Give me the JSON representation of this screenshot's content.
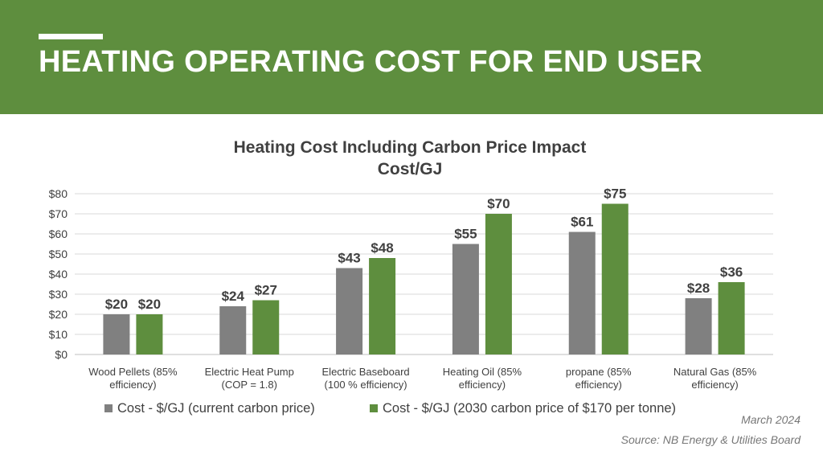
{
  "colors": {
    "banner": "#5e8e3e",
    "series_current": "#808080",
    "series_2030": "#5e8e3e"
  },
  "header": {
    "title": "HEATING OPERATING COST FOR END USER"
  },
  "chart_data": {
    "type": "bar",
    "title": "Heating Cost Including Carbon Price Impact",
    "subtitle": "Cost/GJ",
    "categories": [
      [
        "Wood Pellets (85%",
        "efficiency)"
      ],
      [
        "Electric Heat Pump",
        "(COP = 1.8)"
      ],
      [
        "Electric Baseboard",
        "(100 % efficiency)"
      ],
      [
        "Heating Oil (85%",
        "efficiency)"
      ],
      [
        "propane (85%",
        "efficiency)"
      ],
      [
        "Natural Gas (85%",
        "efficiency)"
      ]
    ],
    "series": [
      {
        "name": "Cost - $/GJ (current carbon price)",
        "values": [
          20,
          24,
          43,
          55,
          61,
          28
        ],
        "labels": [
          "$20",
          "$24",
          "$43",
          "$55",
          "$61",
          "$28"
        ],
        "color": "#808080"
      },
      {
        "name": "Cost - $/GJ (2030 carbon price of $170 per tonne)",
        "values": [
          20,
          27,
          48,
          70,
          75,
          36
        ],
        "labels": [
          "$20",
          "$27",
          "$48",
          "$70",
          "$75",
          "$36"
        ],
        "color": "#5e8e3e"
      }
    ],
    "ylim": [
      0,
      80
    ],
    "yticks": [
      0,
      10,
      20,
      30,
      40,
      50,
      60,
      70,
      80
    ],
    "ytick_labels": [
      "$0",
      "$10",
      "$20",
      "$30",
      "$40",
      "$50",
      "$60",
      "$70",
      "$80"
    ],
    "grid": true,
    "legend_position": "bottom"
  },
  "footer": {
    "date": "March 2024",
    "source": "Source: NB Energy & Utilities Board"
  }
}
